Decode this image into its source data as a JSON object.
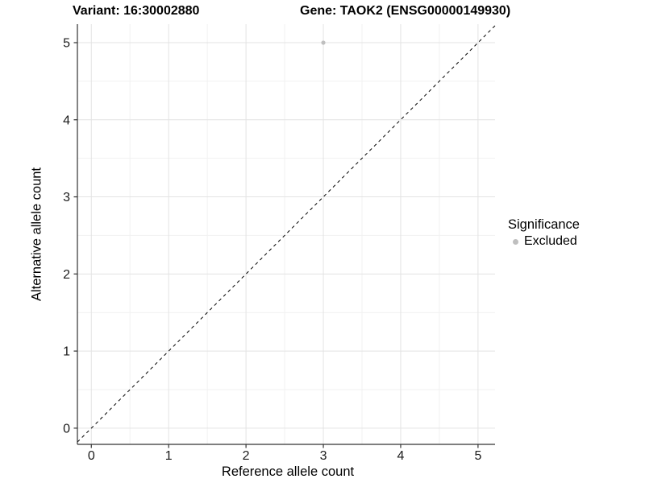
{
  "header": {
    "title_left": "Variant: 16:30002880",
    "title_right": "Gene: TAOK2 (ENSG00000149930)"
  },
  "chart_data": {
    "type": "scatter",
    "title": "Variant: 16:30002880",
    "subtitle": "Gene: TAOK2 (ENSG00000149930)",
    "xlabel": "Reference allele count",
    "ylabel": "Alternative allele count",
    "xlim": [
      -0.18,
      5.22
    ],
    "ylim": [
      -0.21,
      5.24
    ],
    "xticks": [
      0,
      1,
      2,
      3,
      4,
      5
    ],
    "yticks": [
      0,
      1,
      2,
      3,
      4,
      5
    ],
    "xticks_minor": [
      0.5,
      1.5,
      2.5,
      3.5,
      4.5
    ],
    "yticks_minor": [
      0.5,
      1.5,
      2.5,
      3.5,
      4.5
    ],
    "grid": "major+minor",
    "series": [
      {
        "name": "Excluded",
        "color": "#bfbfbf",
        "points": [
          {
            "x": 3,
            "y": 5
          }
        ],
        "point_radius": 2.6
      }
    ],
    "reference_line": {
      "type": "identity y=x",
      "style": "dashed",
      "color": "#000000",
      "width": 1
    },
    "legend": {
      "title": "Significance",
      "position": "right",
      "items": [
        {
          "label": "Excluded",
          "color": "#bfbfbf"
        }
      ]
    },
    "colors": {
      "grid_major": "#e3e3e3",
      "grid_minor": "#f1f1f1",
      "axis_line": "#333333",
      "tick_mark": "#333333",
      "tick_text": "#1a1a1a",
      "panel_bg": "#ffffff"
    }
  }
}
